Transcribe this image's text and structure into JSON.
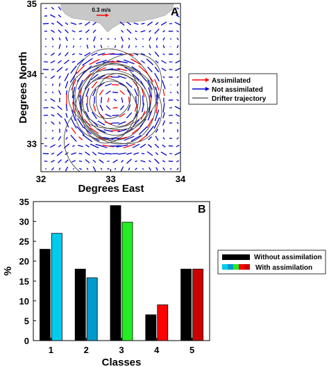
{
  "chart_data": [
    {
      "type": "scatter",
      "panel_label": "A",
      "xlabel": "Degrees East",
      "ylabel": "Degrees North",
      "xlim": [
        32,
        34
      ],
      "ylim": [
        32.6,
        35
      ],
      "x_ticks": [
        "32",
        "33",
        "34"
      ],
      "y_ticks": [
        "33",
        "34",
        "35"
      ],
      "scale_label": "0.3 m/s",
      "legend": {
        "placement": "right",
        "entries": [
          {
            "label": "Assimilated",
            "color": "#ff0000"
          },
          {
            "label": "Not assimilated",
            "color": "#0000cc"
          },
          {
            "label": "Drifter trajectory",
            "color": "#444444"
          }
        ]
      },
      "eddy_center": [
        33.05,
        33.6
      ],
      "land_color": "#c8c8c8",
      "grid": false
    },
    {
      "type": "bar",
      "panel_label": "B",
      "xlabel": "Classes",
      "ylabel": "%",
      "ylim": [
        0,
        35
      ],
      "y_ticks": [
        "0",
        "5",
        "10",
        "15",
        "20",
        "25",
        "30",
        "35"
      ],
      "categories": [
        "1",
        "2",
        "3",
        "4",
        "5"
      ],
      "series": [
        {
          "name": "Without assimilation",
          "values": [
            23,
            18,
            34,
            6.5,
            18
          ],
          "colors": [
            "#000000",
            "#000000",
            "#000000",
            "#000000",
            "#000000"
          ]
        },
        {
          "name": "With assimilation",
          "values": [
            27,
            15.8,
            29.8,
            9,
            18
          ],
          "colors": [
            "#00ccee",
            "#0099cc",
            "#22ee22",
            "#ff0000",
            "#cc0000"
          ]
        }
      ],
      "legend": {
        "placement": "right"
      },
      "grid": false
    }
  ]
}
